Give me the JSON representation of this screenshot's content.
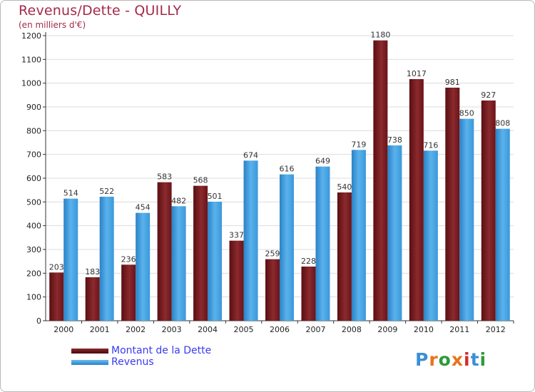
{
  "title": "Revenus/Dette - QUILLY",
  "subtitle": "(en milliers d'€)",
  "logo": {
    "text": "Proxiti",
    "letters": [
      "P",
      "r",
      "o",
      "x",
      "i",
      "t",
      "i"
    ],
    "colors": [
      "#3b8fd6",
      "#e8731c",
      "#2e9a3a",
      "#e8731c",
      "#d62c2c",
      "#3b8fd6",
      "#2e9a3a"
    ]
  },
  "chart_data": {
    "type": "bar",
    "categories": [
      "2000",
      "2001",
      "2002",
      "2003",
      "2004",
      "2005",
      "2006",
      "2007",
      "2008",
      "2009",
      "2010",
      "2011",
      "2012"
    ],
    "series": [
      {
        "name": "Montant de la Dette",
        "color": "#7b1e22",
        "values": [
          203,
          183,
          236,
          583,
          568,
          337,
          259,
          228,
          540,
          1180,
          1017,
          981,
          927
        ]
      },
      {
        "name": "Revenus",
        "color": "#3d9de0",
        "values": [
          514,
          522,
          454,
          482,
          501,
          674,
          616,
          649,
          719,
          738,
          716,
          850,
          808
        ]
      }
    ],
    "ylim": [
      0,
      1200
    ],
    "yticks": [
      0,
      100,
      200,
      300,
      400,
      500,
      600,
      700,
      800,
      900,
      1000,
      1100,
      1200
    ],
    "grid": true,
    "legend_position": "bottom-left"
  }
}
